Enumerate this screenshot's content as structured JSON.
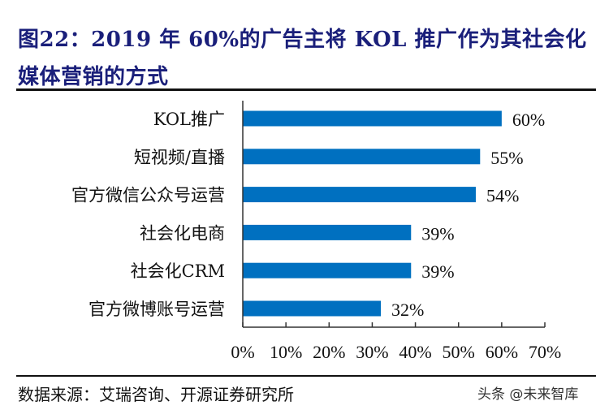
{
  "title_line1": "图22：2019 年 60%的广告主将 KOL 推广作为其社会化",
  "title_line2": "媒体营销的方式",
  "source": "数据来源：艾瑞咨询、开源证券研究所",
  "watermark": "头条 @未来智库",
  "chart_data": {
    "type": "bar",
    "orientation": "horizontal",
    "categories": [
      "KOL推广",
      "短视频/直播",
      "官方微信公众号运营",
      "社会化电商",
      "社会化CRM",
      "官方微博账号运营"
    ],
    "values": [
      60,
      55,
      54,
      39,
      39,
      32
    ],
    "data_labels": [
      "60%",
      "55%",
      "54%",
      "39%",
      "39%",
      "32%"
    ],
    "xlim": [
      0,
      70
    ],
    "xticks": [
      0,
      10,
      20,
      30,
      40,
      50,
      60,
      70
    ],
    "xtick_labels": [
      "0%",
      "10%",
      "20%",
      "30%",
      "40%",
      "50%",
      "60%",
      "70%"
    ],
    "grid": false,
    "bar_color": "#0070c0"
  }
}
